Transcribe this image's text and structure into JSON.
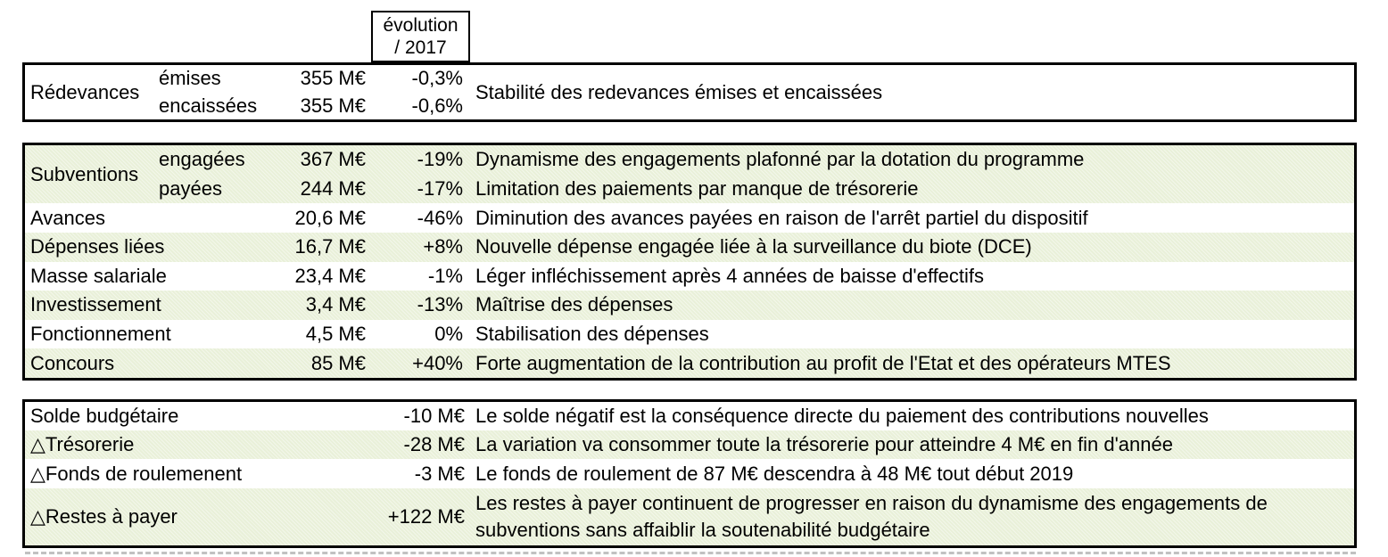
{
  "header": {
    "evolution_line1": "évolution",
    "evolution_line2": "/ 2017"
  },
  "colors": {
    "row_green": "#e9f0d9",
    "border": "#000000",
    "text": "#000000"
  },
  "block1": {
    "label": "Rédevances",
    "rows": [
      {
        "sublabel": "émises",
        "amount": "355 M€",
        "pct": "-0,3%"
      },
      {
        "sublabel": "encaissées",
        "amount": "355 M€",
        "pct": "-0,6%"
      }
    ],
    "comment": "Stabilité des redevances émises et encaissées"
  },
  "block2": {
    "group": {
      "label": "Subventions",
      "rows": [
        {
          "sublabel": "engagées",
          "amount": "367 M€",
          "pct": "-19%",
          "comment": "Dynamisme des engagements plafonné par la dotation du programme"
        },
        {
          "sublabel": "payées",
          "amount": "244 M€",
          "pct": "-17%",
          "comment": "Limitation des paiements par manque de trésorerie"
        }
      ]
    },
    "rows": [
      {
        "label": "Avances",
        "amount": "20,6 M€",
        "pct": "-46%",
        "comment": "Diminution des avances payées en raison de l'arrêt partiel du dispositif"
      },
      {
        "label": "Dépenses liées",
        "amount": "16,7 M€",
        "pct": "+8%",
        "comment": "Nouvelle dépense engagée liée à la surveillance du biote (DCE)"
      },
      {
        "label": "Masse salariale",
        "amount": "23,4 M€",
        "pct": "-1%",
        "comment": "Léger infléchissement après 4 années de baisse d'effectifs"
      },
      {
        "label": "Investissement",
        "amount": "3,4 M€",
        "pct": "-13%",
        "comment": "Maîtrise des dépenses"
      },
      {
        "label": "Fonctionnement",
        "amount": "4,5 M€",
        "pct": "0%",
        "comment": "Stabilisation des dépenses"
      },
      {
        "label": "Concours",
        "amount": "85 M€",
        "pct": "+40%",
        "comment": "Forte augmentation de la contribution au profit de l'Etat et des opérateurs MTES"
      }
    ]
  },
  "block3": {
    "rows": [
      {
        "label": "Solde budgétaire",
        "amount": "-10 M€",
        "comment": "Le solde négatif est la conséquence directe du paiement des contributions nouvelles"
      },
      {
        "label": "△Trésorerie",
        "amount": "-28 M€",
        "comment": "La variation va consommer toute la trésorerie pour atteindre 4 M€ en fin d'année"
      },
      {
        "label": "△Fonds de roulemenent",
        "amount": "-3 M€",
        "comment": "Le fonds de roulement de 87 M€ descendra à 48 M€ tout début 2019"
      },
      {
        "label": "△Restes à payer",
        "amount": "+122 M€",
        "comment": "Les restes à payer continuent de progresser en raison du dynamisme des engagements de subventions sans affaiblir la soutenabilité budgétaire"
      }
    ]
  }
}
